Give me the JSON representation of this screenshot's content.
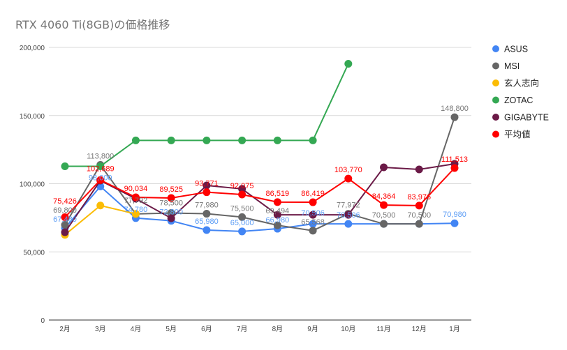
{
  "chart_data": {
    "type": "line",
    "title": "RTX 4060 Ti(8GB)の価格推移",
    "xlabel": "",
    "ylabel": "",
    "categories": [
      "2月",
      "3月",
      "4月",
      "5月",
      "6月",
      "7月",
      "8月",
      "9月",
      "10月",
      "11月",
      "12月",
      "1月"
    ],
    "ylim": [
      0,
      200000
    ],
    "yticks": [
      0,
      50000,
      100000,
      150000,
      200000
    ],
    "ytick_labels": [
      "0",
      "50,000",
      "100,000",
      "150,000",
      "200,000"
    ],
    "grid": true,
    "legend_placement": "right",
    "series": [
      {
        "name": "ASUS",
        "color": "#4285f4",
        "values": [
          67480,
          98000,
          74780,
          72800,
          65980,
          65000,
          66980,
          70506,
          70506,
          70500,
          70500,
          70980
        ],
        "labels": [
          "67,480",
          "98,000",
          "74,780",
          "72,800",
          "65,980",
          "65,000",
          "66,980",
          "70,506",
          "70,506",
          null,
          null,
          "70,980"
        ]
      },
      {
        "name": "MSI",
        "color": "#666666",
        "values": [
          69800,
          113800,
          77792,
          78500,
          77980,
          75500,
          69494,
          65568,
          77972,
          70500,
          70500,
          148800
        ],
        "labels": [
          "69,800",
          "113,800",
          "77,792",
          "78,500",
          "77,980",
          "75,500",
          "69,494",
          "65,568",
          "77,972",
          "70,500",
          "70,500",
          "148,800"
        ]
      },
      {
        "name": "玄人志向",
        "color": "#fbbc04",
        "values": [
          62500,
          84000,
          77800,
          null,
          null,
          null,
          null,
          null,
          null,
          null,
          null,
          null
        ],
        "labels": []
      },
      {
        "name": "ZOTAC",
        "color": "#34a853",
        "values": [
          112800,
          112800,
          131800,
          131800,
          131800,
          131800,
          131800,
          131800,
          188000,
          null,
          null,
          null
        ],
        "labels": []
      },
      {
        "name": "GIGABYTE",
        "color": "#6b1a47",
        "values": [
          64400,
          102300,
          89000,
          74700,
          98700,
          96200,
          77200,
          77200,
          77200,
          112000,
          110500,
          114600
        ],
        "labels": []
      },
      {
        "name": "平均値",
        "color": "#ff0000",
        "values": [
          75426,
          102689,
          90034,
          89525,
          93771,
          92075,
          86519,
          86419,
          103770,
          84364,
          83976,
          111513
        ],
        "labels": [
          "75,426",
          "102,689",
          "90,034",
          "89,525",
          "93,771",
          "92,075",
          "86,519",
          "86,419",
          "103,770",
          "84,364",
          "83,976",
          "111,513"
        ]
      }
    ]
  }
}
